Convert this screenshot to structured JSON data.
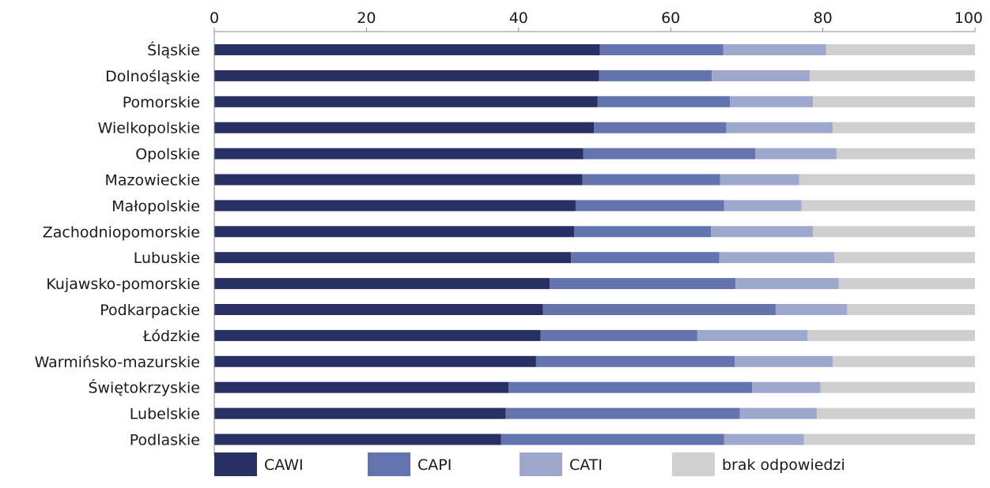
{
  "chart_data": {
    "type": "bar",
    "orientation": "horizontal",
    "stacked": true,
    "xlim": [
      0,
      100
    ],
    "xticks": [
      0,
      20,
      40,
      60,
      80,
      100
    ],
    "x_axis_position": "top",
    "grid": false,
    "legend_position": "bottom",
    "categories": [
      "Śląskie",
      "Dolnośląskie",
      "Pomorskie",
      "Wielkopolskie",
      "Opolskie",
      "Mazowieckie",
      "Małopolskie",
      "Zachodniopomorskie",
      "Lubuskie",
      "Kujawsko-pomorskie",
      "Podkarpackie",
      "Łódzkie",
      "Warmińsko-mazurskie",
      "Świętokrzyskie",
      "Lubelskie",
      "Podlaskie"
    ],
    "series": [
      {
        "name": "CAWI",
        "color": "#272f63",
        "values": [
          50.7,
          50.6,
          50.4,
          49.9,
          48.5,
          48.4,
          47.5,
          47.3,
          46.9,
          44.1,
          43.2,
          42.9,
          42.3,
          38.7,
          38.3,
          37.7
        ]
      },
      {
        "name": "CAPI",
        "color": "#6273ae",
        "values": [
          16.2,
          14.8,
          17.4,
          17.4,
          22.6,
          18.1,
          19.5,
          18.0,
          19.5,
          24.4,
          30.6,
          20.6,
          26.1,
          32.0,
          30.8,
          29.3
        ]
      },
      {
        "name": "CATI",
        "color": "#9ea8cc",
        "values": [
          13.5,
          12.9,
          10.9,
          14.0,
          10.7,
          10.4,
          10.2,
          13.4,
          15.1,
          13.6,
          9.4,
          14.5,
          12.9,
          9.0,
          10.1,
          10.5
        ]
      },
      {
        "name": "brak odpowiedzi",
        "color": "#cfcfcf",
        "values": [
          19.6,
          21.7,
          21.3,
          18.7,
          18.2,
          23.1,
          22.8,
          21.3,
          18.5,
          17.9,
          16.8,
          22.0,
          18.7,
          20.3,
          20.8,
          22.5
        ]
      }
    ]
  }
}
